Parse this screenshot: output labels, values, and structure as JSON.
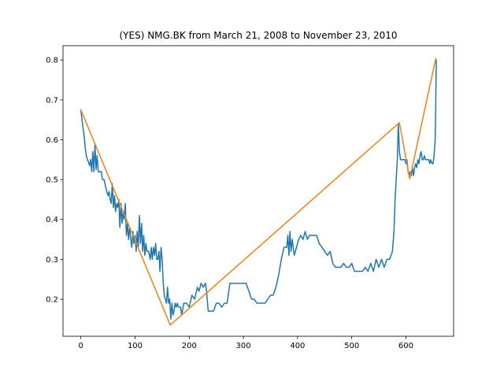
{
  "chart_data": {
    "type": "line",
    "title": "(YES) NMG.BK from March 21, 2008 to November 23, 2010",
    "xlabel": "",
    "ylabel": "",
    "xlim": [
      -33,
      688
    ],
    "ylim": [
      0.107,
      0.836
    ],
    "xticks": [
      0,
      100,
      200,
      300,
      400,
      500,
      600
    ],
    "yticks": [
      0.2,
      0.3,
      0.4,
      0.5,
      0.6,
      0.7,
      0.8
    ],
    "grid": false,
    "series": [
      {
        "color": "#1f77b4",
        "points": [
          [
            0,
            0.675
          ],
          [
            2,
            0.65
          ],
          [
            4,
            0.63
          ],
          [
            6,
            0.61
          ],
          [
            8,
            0.58
          ],
          [
            10,
            0.56
          ],
          [
            12,
            0.55
          ],
          [
            14,
            0.545
          ],
          [
            16,
            0.535
          ],
          [
            18,
            0.55
          ],
          [
            20,
            0.52
          ],
          [
            22,
            0.57
          ],
          [
            24,
            0.52
          ],
          [
            26,
            0.59
          ],
          [
            28,
            0.525
          ],
          [
            30,
            0.56
          ],
          [
            32,
            0.52
          ],
          [
            35,
            0.52
          ],
          [
            38,
            0.52
          ],
          [
            40,
            0.5
          ],
          [
            43,
            0.5
          ],
          [
            46,
            0.48
          ],
          [
            48,
            0.47
          ],
          [
            50,
            0.46
          ],
          [
            52,
            0.47
          ],
          [
            54,
            0.45
          ],
          [
            56,
            0.44
          ],
          [
            58,
            0.49
          ],
          [
            60,
            0.43
          ],
          [
            62,
            0.46
          ],
          [
            64,
            0.42
          ],
          [
            66,
            0.44
          ],
          [
            68,
            0.43
          ],
          [
            70,
            0.45
          ],
          [
            72,
            0.38
          ],
          [
            74,
            0.44
          ],
          [
            76,
            0.39
          ],
          [
            78,
            0.42
          ],
          [
            80,
            0.4
          ],
          [
            82,
            0.44
          ],
          [
            84,
            0.36
          ],
          [
            86,
            0.39
          ],
          [
            88,
            0.35
          ],
          [
            90,
            0.38
          ],
          [
            92,
            0.35
          ],
          [
            94,
            0.33
          ],
          [
            96,
            0.37
          ],
          [
            98,
            0.34
          ],
          [
            100,
            0.36
          ],
          [
            102,
            0.32
          ],
          [
            104,
            0.37
          ],
          [
            106,
            0.33
          ],
          [
            108,
            0.41
          ],
          [
            110,
            0.34
          ],
          [
            112,
            0.39
          ],
          [
            114,
            0.32
          ],
          [
            116,
            0.36
          ],
          [
            118,
            0.31
          ],
          [
            120,
            0.34
          ],
          [
            122,
            0.32
          ],
          [
            125,
            0.32
          ],
          [
            128,
            0.3
          ],
          [
            130,
            0.33
          ],
          [
            132,
            0.3
          ],
          [
            134,
            0.33
          ],
          [
            136,
            0.31
          ],
          [
            138,
            0.34
          ],
          [
            140,
            0.3
          ],
          [
            142,
            0.3
          ],
          [
            144,
            0.32
          ],
          [
            146,
            0.27
          ],
          [
            148,
            0.33
          ],
          [
            150,
            0.3
          ],
          [
            152,
            0.24
          ],
          [
            154,
            0.21
          ],
          [
            156,
            0.2
          ],
          [
            158,
            0.19
          ],
          [
            160,
            0.23
          ],
          [
            162,
            0.19
          ],
          [
            164,
            0.2
          ],
          [
            166,
            0.15
          ],
          [
            168,
            0.19
          ],
          [
            170,
            0.16
          ],
          [
            172,
            0.17
          ],
          [
            174,
            0.19
          ],
          [
            176,
            0.18
          ],
          [
            178,
            0.19
          ],
          [
            180,
            0.18
          ],
          [
            184,
            0.18
          ],
          [
            186,
            0.16
          ],
          [
            190,
            0.19
          ],
          [
            195,
            0.19
          ],
          [
            200,
            0.18
          ],
          [
            205,
            0.21
          ],
          [
            210,
            0.2
          ],
          [
            215,
            0.23
          ],
          [
            218,
            0.22
          ],
          [
            222,
            0.24
          ],
          [
            226,
            0.23
          ],
          [
            230,
            0.24
          ],
          [
            232,
            0.22
          ],
          [
            235,
            0.17
          ],
          [
            240,
            0.17
          ],
          [
            245,
            0.17
          ],
          [
            250,
            0.19
          ],
          [
            255,
            0.19
          ],
          [
            260,
            0.18
          ],
          [
            265,
            0.19
          ],
          [
            270,
            0.19
          ],
          [
            275,
            0.24
          ],
          [
            280,
            0.24
          ],
          [
            290,
            0.24
          ],
          [
            300,
            0.24
          ],
          [
            305,
            0.24
          ],
          [
            310,
            0.22
          ],
          [
            315,
            0.2
          ],
          [
            318,
            0.2
          ],
          [
            320,
            0.2
          ],
          [
            325,
            0.19
          ],
          [
            330,
            0.19
          ],
          [
            335,
            0.19
          ],
          [
            340,
            0.19
          ],
          [
            345,
            0.2
          ],
          [
            350,
            0.21
          ],
          [
            355,
            0.21
          ],
          [
            360,
            0.23
          ],
          [
            365,
            0.26
          ],
          [
            370,
            0.3
          ],
          [
            375,
            0.33
          ],
          [
            380,
            0.33
          ],
          [
            382,
            0.36
          ],
          [
            384,
            0.31
          ],
          [
            386,
            0.37
          ],
          [
            388,
            0.32
          ],
          [
            390,
            0.35
          ],
          [
            394,
            0.31
          ],
          [
            398,
            0.33
          ],
          [
            402,
            0.35
          ],
          [
            406,
            0.36
          ],
          [
            410,
            0.35
          ],
          [
            414,
            0.37
          ],
          [
            418,
            0.35
          ],
          [
            422,
            0.36
          ],
          [
            426,
            0.36
          ],
          [
            430,
            0.36
          ],
          [
            435,
            0.36
          ],
          [
            440,
            0.34
          ],
          [
            445,
            0.33
          ],
          [
            450,
            0.32
          ],
          [
            455,
            0.31
          ],
          [
            460,
            0.32
          ],
          [
            465,
            0.29
          ],
          [
            470,
            0.28
          ],
          [
            475,
            0.28
          ],
          [
            480,
            0.28
          ],
          [
            485,
            0.29
          ],
          [
            490,
            0.28
          ],
          [
            495,
            0.28
          ],
          [
            500,
            0.29
          ],
          [
            505,
            0.27
          ],
          [
            510,
            0.27
          ],
          [
            515,
            0.27
          ],
          [
            520,
            0.27
          ],
          [
            525,
            0.28
          ],
          [
            530,
            0.27
          ],
          [
            535,
            0.29
          ],
          [
            540,
            0.27
          ],
          [
            545,
            0.3
          ],
          [
            550,
            0.28
          ],
          [
            555,
            0.3
          ],
          [
            560,
            0.28
          ],
          [
            565,
            0.3
          ],
          [
            570,
            0.3
          ],
          [
            575,
            0.32
          ],
          [
            578,
            0.37
          ],
          [
            580,
            0.45
          ],
          [
            582,
            0.5
          ],
          [
            584,
            0.55
          ],
          [
            586,
            0.64
          ],
          [
            588,
            0.57
          ],
          [
            590,
            0.55
          ],
          [
            592,
            0.55
          ],
          [
            594,
            0.55
          ],
          [
            596,
            0.55
          ],
          [
            598,
            0.55
          ],
          [
            600,
            0.54
          ],
          [
            602,
            0.55
          ],
          [
            604,
            0.52
          ],
          [
            606,
            0.51
          ],
          [
            608,
            0.52
          ],
          [
            610,
            0.51
          ],
          [
            612,
            0.53
          ],
          [
            614,
            0.51
          ],
          [
            616,
            0.53
          ],
          [
            618,
            0.54
          ],
          [
            620,
            0.53
          ],
          [
            622,
            0.55
          ],
          [
            624,
            0.54
          ],
          [
            626,
            0.56
          ],
          [
            628,
            0.57
          ],
          [
            630,
            0.55
          ],
          [
            632,
            0.55
          ],
          [
            634,
            0.56
          ],
          [
            636,
            0.55
          ],
          [
            638,
            0.55
          ],
          [
            640,
            0.55
          ],
          [
            642,
            0.55
          ],
          [
            644,
            0.54
          ],
          [
            646,
            0.55
          ],
          [
            648,
            0.54
          ],
          [
            650,
            0.54
          ],
          [
            652,
            0.56
          ],
          [
            654,
            0.6
          ],
          [
            655,
            0.68
          ],
          [
            656,
            0.8
          ]
        ]
      },
      {
        "color": "#ff7f0e",
        "points": [
          [
            0,
            0.675
          ],
          [
            165,
            0.135
          ],
          [
            588,
            0.643
          ],
          [
            607,
            0.502
          ],
          [
            655,
            0.803
          ]
        ]
      }
    ]
  }
}
